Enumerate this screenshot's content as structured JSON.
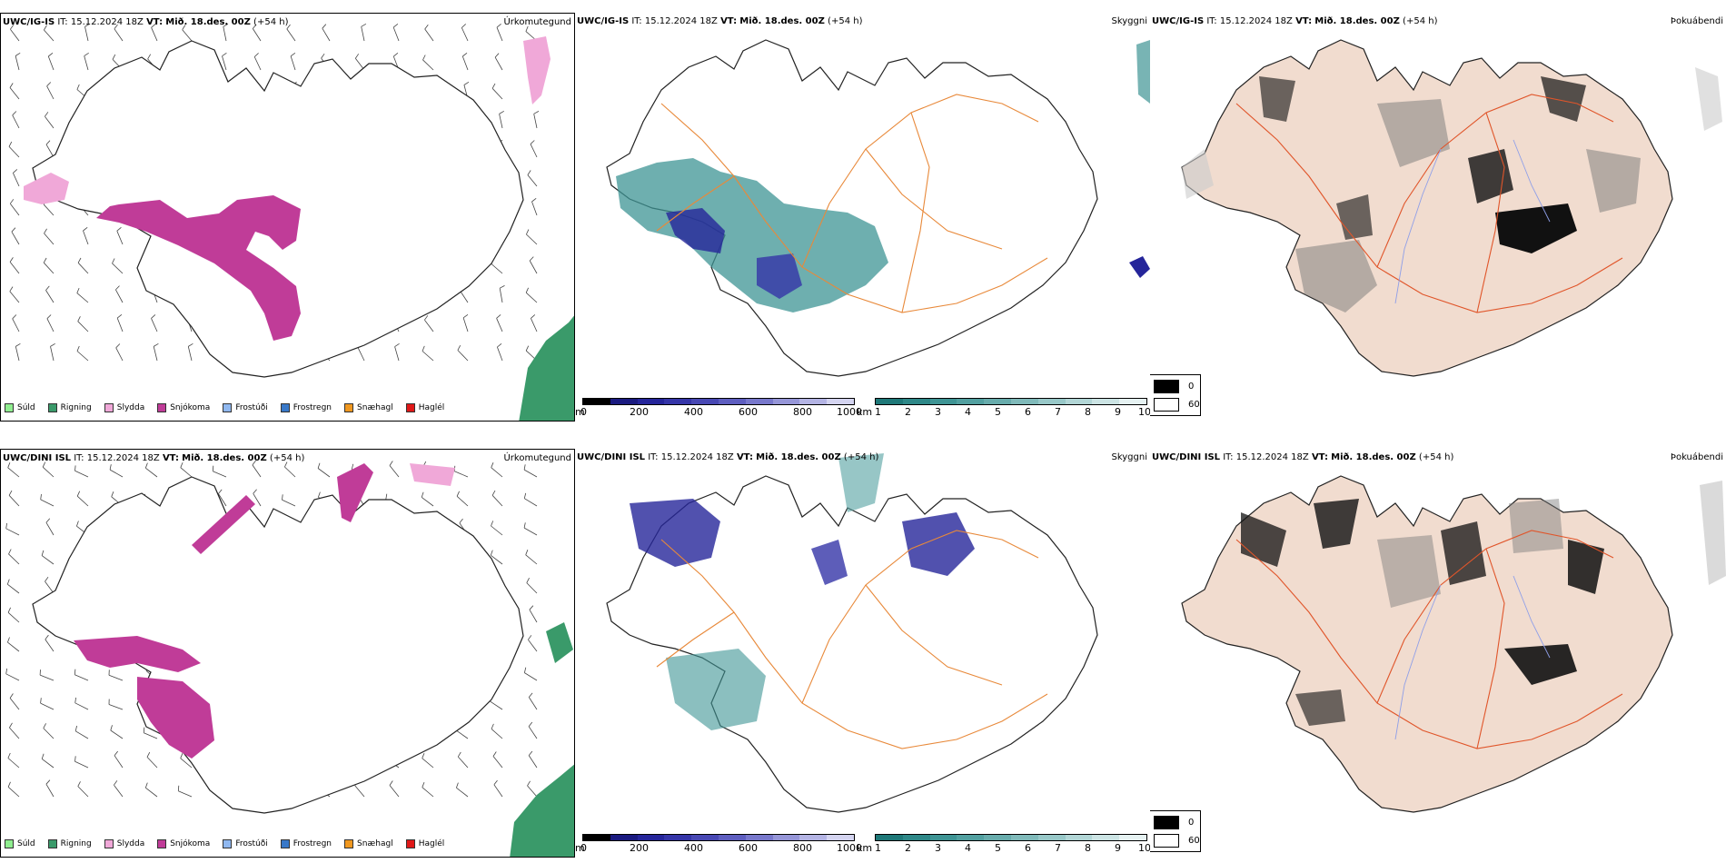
{
  "rows": [
    {
      "model": "UWC/IG-IS",
      "it": "IT: 15.12.2024 18Z",
      "vt_label": "VT:",
      "vt": "Mið. 18.des. 00Z",
      "lead": "(+54 h)"
    },
    {
      "model": "UWC/DINI ISL",
      "it": "IT: 15.12.2024 18Z",
      "vt_label": "VT:",
      "vt": "Mið. 18.des. 00Z",
      "lead": "(+54 h)"
    }
  ],
  "panels": {
    "precip_title": "Úrkomutegund",
    "visibility_title": "Skyggni",
    "cloud_title": "Þokuábendi"
  },
  "precip_legend": [
    {
      "label": "Súld",
      "color": "#90ee90"
    },
    {
      "label": "Rigning",
      "color": "#3a9a6a"
    },
    {
      "label": "Slydda",
      "color": "#f0a8d8"
    },
    {
      "label": "Snjókoma",
      "color": "#c03c98"
    },
    {
      "label": "Frostúði",
      "color": "#90b8f0"
    },
    {
      "label": "Frostregn",
      "color": "#3878c8"
    },
    {
      "label": "Snæhagl",
      "color": "#f09820"
    },
    {
      "label": "Haglél",
      "color": "#e01818"
    }
  ],
  "vis_scale_m": {
    "unit": "m",
    "ticks": [
      "0",
      "200",
      "400",
      "600",
      "800",
      "1000"
    ],
    "colors": [
      "#000000",
      "#1a1a80",
      "#25259a",
      "#3535a8",
      "#4848b4",
      "#5e5ec0",
      "#7878cc",
      "#9696d8",
      "#b4b4e4",
      "#d4d4f0"
    ]
  },
  "vis_scale_km": {
    "unit": "km",
    "ticks": [
      "1",
      "2",
      "3",
      "4",
      "5",
      "6",
      "7",
      "8",
      "9",
      "10"
    ],
    "colors": [
      "#1e7878",
      "#2e8888",
      "#3e9494",
      "#52a0a0",
      "#68acac",
      "#80baba",
      "#98c8c8",
      "#b2d6d6",
      "#cce4e4",
      "#e6f2f2"
    ]
  },
  "cloud_legend": [
    {
      "label": "0",
      "color": "#000000"
    },
    {
      "label": "60",
      "color": "#ffffff"
    }
  ],
  "colors": {
    "snow": "#c03c98",
    "sleet": "#f0a8d8",
    "rain": "#3a9a6a",
    "road": "#e8893a",
    "land_fog": "#f1dccf",
    "river": "#8f9fe8"
  }
}
